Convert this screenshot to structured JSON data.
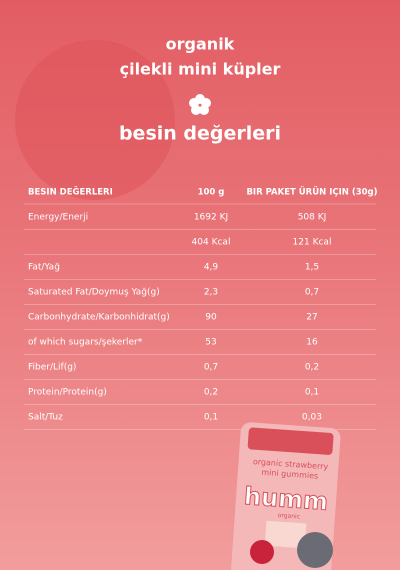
{
  "header": {
    "line1": "organik",
    "line2": "çilekli mini küpler",
    "title": "besin değerleri"
  },
  "table": {
    "columns": [
      "BESIN DEĞERLERI",
      "100 g",
      "BIR PAKET ÜRÜN IÇIN (30g)"
    ],
    "rows": [
      [
        "Energy/Enerji",
        "1692 KJ",
        "508 KJ"
      ],
      [
        null,
        "404 Kcal",
        "121 Kcal"
      ],
      [
        "Fat/Yağ",
        "4,9",
        "1,5"
      ],
      [
        "Saturated Fat/Doymuş Yağ(g)",
        "2,3",
        "0,7"
      ],
      [
        "Carbonhydrate/Karbonhidrat(g)",
        "90",
        "27"
      ],
      [
        "of which sugars/şekerler*",
        "53",
        "16"
      ],
      [
        "Fiber/Lif(g)",
        "0,7",
        "0,2"
      ],
      [
        "Protein/Protein(g)",
        "0,2",
        "0,1"
      ],
      [
        "Salt/Tuz",
        "0,1",
        "0,03"
      ]
    ]
  },
  "package": {
    "brand": "humm",
    "sub": "organic",
    "line1": "organic strawberry",
    "line2": "mini gummies"
  }
}
